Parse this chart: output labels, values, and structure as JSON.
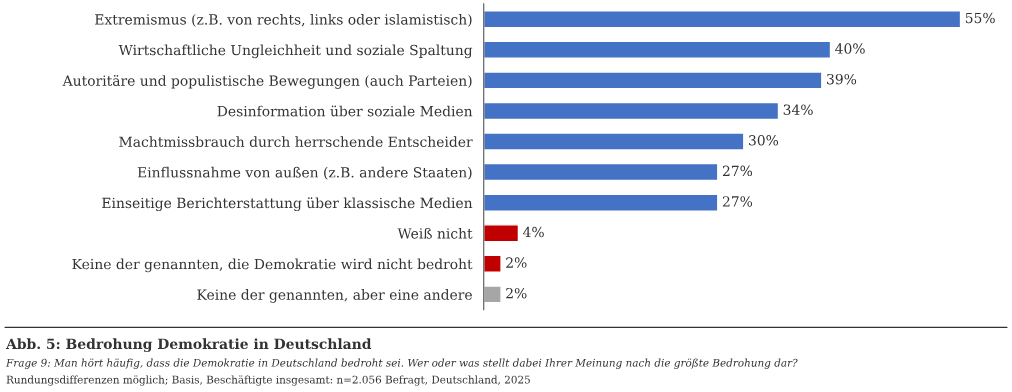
{
  "chart_data": {
    "type": "bar",
    "orientation": "horizontal",
    "title": "Abb. 5: Bedrohung Demokratie in Deutschland",
    "subtitle": "Frage 9: Man hört häufig, dass die Demokratie in Deutschland bedroht sei. Wer oder was stellt dabei Ihrer Meinung nach die größte Bedrohung dar?",
    "annotations": [
      "Rundungsdifferenzen möglich; Basis, Beschäftigte insgesamt: n=2.056 Befragt, Deutschland, 2025"
    ],
    "categories": [
      "Extremismus (z.B. von rechts, links oder islamistisch)",
      "Wirtschaftliche Ungleichheit und soziale Spaltung",
      "Autoritäre und populistische Bewegungen (auch Parteien)",
      "Desinformation über soziale Medien",
      "Machtmissbrauch durch herrschende Entscheider",
      "Einflussnahme von außen (z.B. andere Staaten)",
      "Einseitige Berichterstattung über klassische Medien",
      "Weiß nicht",
      "Keine der genannten, die Demokratie wird nicht bedroht",
      "Keine der genannten, aber eine andere"
    ],
    "values": [
      55,
      40,
      39,
      34,
      30,
      27,
      27,
      4,
      2,
      2
    ],
    "value_labels": [
      "55%",
      "40%",
      "39%",
      "34%",
      "30%",
      "27%",
      "27%",
      "4%",
      "2%",
      "2%"
    ],
    "colors": [
      "#4472c4",
      "#4472c4",
      "#4472c4",
      "#4472c4",
      "#4472c4",
      "#4472c4",
      "#4472c4",
      "#c00000",
      "#c00000",
      "#a6a6a6"
    ],
    "grid": false,
    "legend": false
  }
}
